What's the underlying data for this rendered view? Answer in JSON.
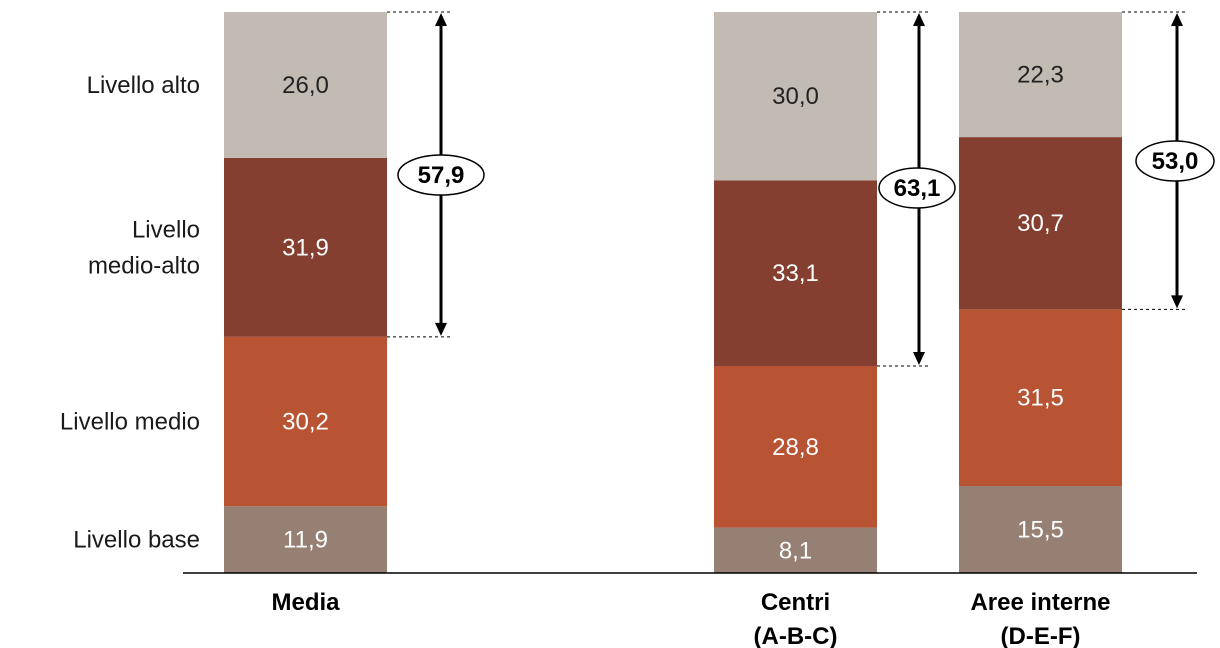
{
  "chart_data": {
    "type": "bar",
    "stacked": true,
    "percent_stacked": true,
    "categories": [
      [
        "Media"
      ],
      [
        "Centri",
        "(A-B-C)"
      ],
      [
        "Aree interne",
        "(D-E-F)"
      ]
    ],
    "series": [
      {
        "name": "Livello base",
        "label_lines": [
          "Livello base"
        ],
        "values": [
          11.9,
          8.1,
          15.5
        ],
        "labels": [
          "11,9",
          "8,1",
          "15,5"
        ],
        "color": "#958073",
        "text_color": "#ffffff"
      },
      {
        "name": "Livello medio",
        "label_lines": [
          "Livello medio"
        ],
        "values": [
          30.2,
          28.8,
          31.5
        ],
        "labels": [
          "30,2",
          "28,8",
          "31,5"
        ],
        "color": "#b85333",
        "text_color": "#ffffff"
      },
      {
        "name": "Livello medio-alto",
        "label_lines": [
          "Livello",
          "medio-alto"
        ],
        "values": [
          31.9,
          33.1,
          30.7
        ],
        "labels": [
          "31,9",
          "33,1",
          "30,7"
        ],
        "color": "#843f30",
        "text_color": "#ffffff"
      },
      {
        "name": "Livello alto",
        "label_lines": [
          "Livello alto"
        ],
        "values": [
          26.0,
          30.0,
          22.3
        ],
        "labels": [
          "26,0",
          "30,0",
          "22,3"
        ],
        "color": "#c2bbb3",
        "text_color": "#222222"
      }
    ],
    "totals": {
      "description_series": [
        "Livello medio-alto",
        "Livello alto"
      ],
      "values": [
        57.9,
        63.1,
        53.0
      ],
      "labels": [
        "57,9",
        "63,1",
        "53,0"
      ]
    },
    "ylim": [
      0,
      100
    ],
    "grid": false,
    "legend": "left axis labels"
  }
}
